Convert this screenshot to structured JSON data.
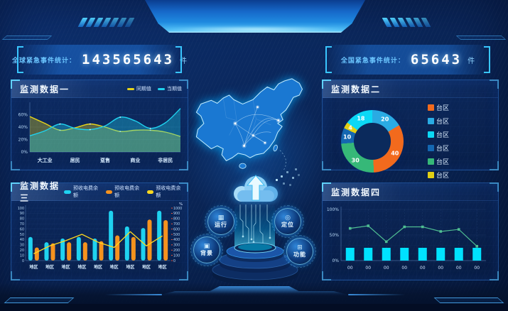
{
  "counters": {
    "left": {
      "label": "全球紧急事件统计：",
      "value": "143565643",
      "unit": "件"
    },
    "right": {
      "label": "全国紧急事件统计：",
      "value": "65643",
      "unit": "件"
    }
  },
  "center": {
    "badges": [
      {
        "label": "运行",
        "glyph": "▦"
      },
      {
        "label": "定位",
        "glyph": "◎"
      },
      {
        "label": "背景",
        "glyph": "▣"
      },
      {
        "label": "功能",
        "glyph": "⊞"
      }
    ]
  },
  "colors": {
    "accent_cyan": "#39c6ff",
    "panel_border": "#2e76d2",
    "digit_white": "#ffffff"
  },
  "chart_data": [
    {
      "id": "monitor-1",
      "type": "area",
      "title": "监测数据一",
      "categories": [
        "大工业",
        "居民",
        "趸售",
        "商业",
        "非居民"
      ],
      "ylim": [
        0,
        80
      ],
      "yticks": [
        "0%",
        "20%",
        "40%",
        "60%"
      ],
      "grid": true,
      "legend_position": "top-right",
      "series": [
        {
          "name": "同期值",
          "color": "#e6d41a",
          "values": [
            57,
            46,
            35,
            39,
            45,
            40,
            33,
            35,
            35,
            32,
            25
          ]
        },
        {
          "name": "当期值",
          "color": "#1fd2ef",
          "values": [
            26,
            34,
            45,
            38,
            36,
            42,
            56,
            50,
            38,
            47,
            70
          ]
        }
      ]
    },
    {
      "id": "monitor-2",
      "type": "pie",
      "title": "监测数据二",
      "donut": true,
      "legend_position": "right",
      "segments": [
        {
          "label": "台区",
          "value": 20,
          "color": "#2aabe3"
        },
        {
          "label": "台区",
          "value": 40,
          "color": "#f26a1d"
        },
        {
          "label": "台区",
          "value": 30,
          "color": "#36b878"
        },
        {
          "label": "台区",
          "value": 10,
          "color": "#1467b1"
        },
        {
          "label": "台区",
          "value": 4,
          "color": "#e2cf14"
        },
        {
          "label": "台区",
          "value": 18,
          "color": "#0cd8f5"
        }
      ],
      "legend": [
        {
          "label": "台区",
          "color": "#f26a1d"
        },
        {
          "label": "台区",
          "color": "#2aabe3"
        },
        {
          "label": "台区",
          "color": "#0cd8f5"
        },
        {
          "label": "台区",
          "color": "#1467b1"
        },
        {
          "label": "台区",
          "color": "#36b878"
        },
        {
          "label": "台区",
          "color": "#e2cf14"
        }
      ]
    },
    {
      "id": "monitor-3",
      "type": "bar",
      "title": "监测数据三",
      "categories": [
        "地区",
        "地区",
        "地区",
        "地区",
        "地区",
        "地区",
        "地区",
        "地区",
        "地区"
      ],
      "ylim_left": [
        0,
        100
      ],
      "ylim_right": [
        0,
        1000
      ],
      "right_axis_unit": "%",
      "series": [
        {
          "name": "预收电费余额",
          "kind": "bar",
          "color": "#1fd2f0",
          "values": [
            45,
            35,
            42,
            45,
            42,
            95,
            65,
            62,
            95
          ]
        },
        {
          "name": "预收电费余额",
          "kind": "bar",
          "color": "#f5921e",
          "values": [
            25,
            33,
            35,
            35,
            37,
            48,
            45,
            78,
            77
          ]
        },
        {
          "name": "预收电费余额",
          "kind": "line",
          "color": "#ffd91f",
          "values": [
            13,
            28,
            38,
            50,
            35,
            25,
            55,
            28,
            47
          ]
        }
      ]
    },
    {
      "id": "monitor-4",
      "type": "line",
      "title": "监测数据四",
      "categories": [
        "00",
        "00",
        "00",
        "00",
        "00",
        "00",
        "00",
        "00"
      ],
      "ylim": [
        0,
        100
      ],
      "yticks": [
        "0%",
        "50%",
        "100%"
      ],
      "series": [
        {
          "kind": "bar",
          "color": "#00e2ff",
          "values": [
            25,
            25,
            25,
            25,
            25,
            25,
            25,
            25
          ]
        },
        {
          "kind": "line",
          "color": "#4fbe92",
          "values": [
            63,
            68,
            37,
            66,
            66,
            57,
            61,
            28
          ]
        }
      ]
    }
  ]
}
